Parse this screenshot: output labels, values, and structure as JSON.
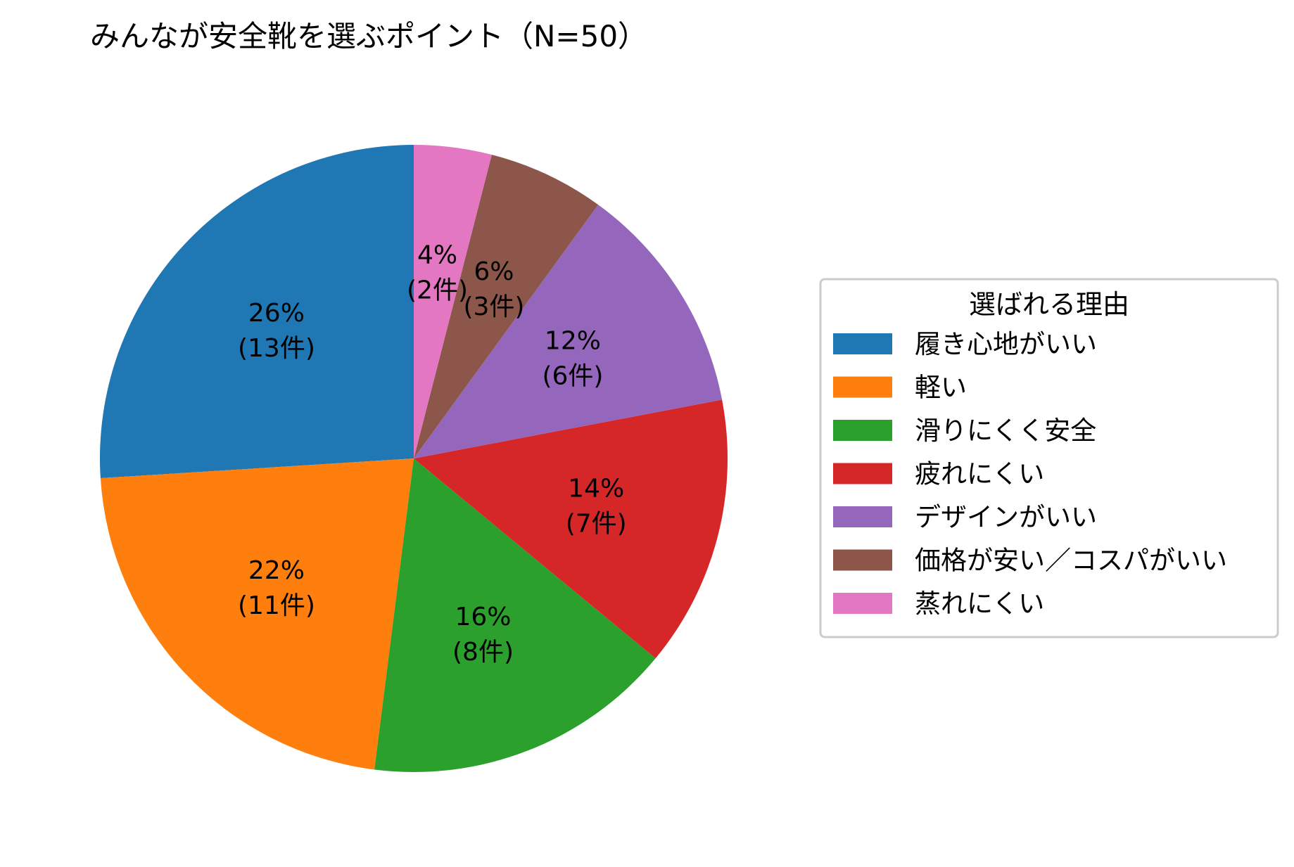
{
  "chart_data": {
    "type": "pie",
    "title": "みんなが安全靴を選ぶポイント（N=50）",
    "categories": [
      "履き心地がいい",
      "軽い",
      "滑りにくく安全",
      "疲れにくい",
      "デザインがいい",
      "価格が安い／コスパがいい",
      "蒸れにくい"
    ],
    "values": [
      13,
      11,
      8,
      7,
      6,
      3,
      2
    ],
    "labels": [
      [
        "26%",
        "(13件)"
      ],
      [
        "22%",
        "(11件)"
      ],
      [
        "16%",
        "(8件)"
      ],
      [
        "14%",
        "(7件)"
      ],
      [
        "12%",
        "(6件)"
      ],
      [
        "6%",
        "(3件)"
      ],
      [
        "4%",
        "(2件)"
      ]
    ],
    "colors": [
      "#1f77b4",
      "#ff7f0e",
      "#2ca02c",
      "#d62728",
      "#9467bd",
      "#8c564b",
      "#e377c2"
    ],
    "start_angle": 90,
    "direction": "counterclockwise",
    "legend": {
      "title": "選ばれる理由",
      "placement": "right"
    }
  }
}
